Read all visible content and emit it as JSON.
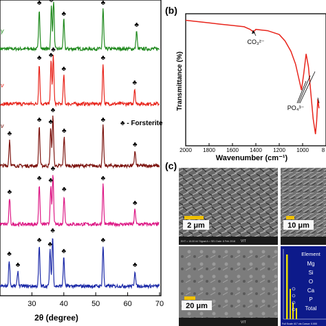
{
  "chart_data": [
    {
      "type": "line",
      "panel": "(a)",
      "xlabel": "2θ (degree)",
      "xlim": [
        20,
        70
      ],
      "x_ticks": [
        "30",
        "40",
        "50",
        "60",
        "70"
      ],
      "legend_marker": "♣ - Forsterite",
      "peak_marker": "♣",
      "peaks_2theta": [
        22.9,
        25.5,
        32.3,
        35.7,
        36.5,
        40.0,
        52.3,
        62.3,
        63.0
      ],
      "series": [
        {
          "color": "#218a1f",
          "peaks": [
            32.3,
            36.1,
            36.8,
            40.0,
            52.3,
            62.8
          ],
          "label_markers": [
            "♣",
            "♣♣",
            "♣",
            "♣",
            "♣"
          ]
        },
        {
          "color": "#e8251c",
          "peaks": [
            32.3,
            36.0,
            36.7,
            40.0,
            52.3,
            62.2
          ],
          "label_markers": [
            "♣",
            "♣♣",
            "♣",
            "♣",
            "♣"
          ]
        },
        {
          "color": "#7d1510",
          "peaks": [
            23.0,
            32.3,
            35.9,
            36.6,
            40.1,
            52.3,
            62.3
          ],
          "label_markers": [
            "♣",
            "♣",
            "♣♣",
            "♣",
            "♣",
            "♣"
          ]
        },
        {
          "color": "#dd1a86",
          "peaks": [
            23.0,
            32.3,
            35.9,
            36.6,
            40.1,
            52.3,
            62.3
          ],
          "label_markers": [
            "♣",
            "♣",
            "♣♣",
            "♣",
            "♣",
            "♣"
          ]
        },
        {
          "color": "#1c2aa8",
          "peaks": [
            22.9,
            25.6,
            32.3,
            35.7,
            36.5,
            40.0,
            52.3,
            62.3
          ],
          "label_markers": [
            "♣",
            "♣",
            "♣",
            "♣♣",
            "♣",
            "♣",
            "♣",
            "♣"
          ]
        }
      ],
      "edge_fragment": "γ"
    },
    {
      "type": "line",
      "panel": "(b)",
      "xlabel": "Wavenumber (cm⁻¹)",
      "ylabel": "Transmittance (%)",
      "xlim": [
        2000,
        800
      ],
      "x_ticks": [
        "2000",
        "1800",
        "1600",
        "1400",
        "1200",
        "1000",
        "8"
      ],
      "annotations": [
        "CO₃²⁻",
        "PO₄³⁻"
      ],
      "series": [
        {
          "color": "#e8251c",
          "x": [
            2000,
            1900,
            1800,
            1700,
            1600,
            1500,
            1450,
            1420,
            1400,
            1300,
            1200,
            1150,
            1100,
            1060,
            1030,
            1010,
            990,
            970,
            950,
            930,
            910,
            890,
            880,
            870,
            860
          ],
          "y": [
            96,
            95,
            94,
            93,
            92,
            91,
            89,
            87,
            89,
            88,
            85,
            80,
            72,
            62,
            50,
            42,
            55,
            70,
            60,
            40,
            20,
            8,
            18,
            35,
            28
          ]
        }
      ]
    }
  ],
  "panel_labels": {
    "a_tail": "ν",
    "b": "(b)",
    "c": "(c)"
  },
  "sem": {
    "scalebars": [
      "2 μm",
      "10 μm",
      "20 μm"
    ],
    "watermark": "VIT",
    "footer_text": "EHT = 15.00 kV   Signal A = SE1   Date: 8 Feb 2018"
  },
  "eds": {
    "title": "Element",
    "elements": [
      "Mg",
      "Si",
      "O",
      "Ca",
      "P",
      "Total"
    ],
    "footer": "Full Scale 417 cts Cursor: 0.000"
  }
}
